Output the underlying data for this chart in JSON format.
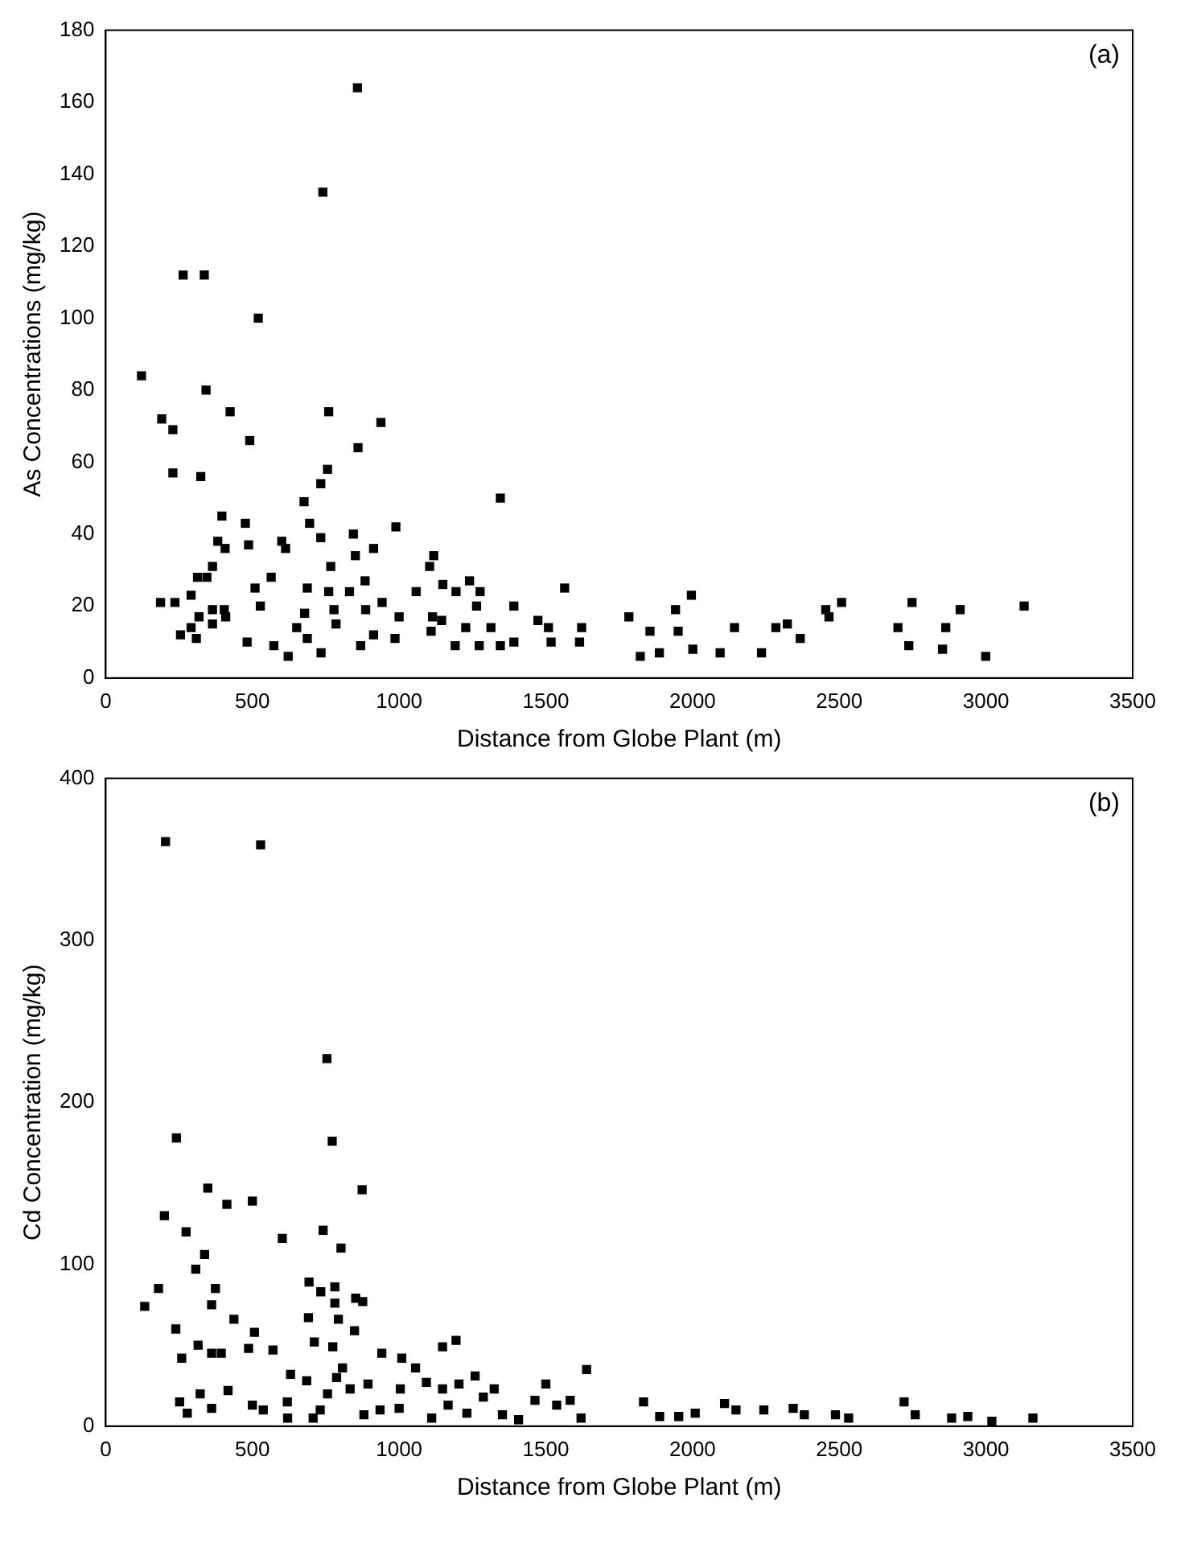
{
  "chart_data": [
    {
      "type": "scatter",
      "xlabel": "Distance from Globe Plant (m)",
      "ylabel": "As Concentrations (mg/kg)",
      "annotations": [
        "(a)"
      ],
      "marker": "square",
      "xlim": [
        0,
        3500
      ],
      "xticks": [
        0,
        500,
        1000,
        1500,
        2000,
        2500,
        3000,
        3500
      ],
      "ylim": [
        0,
        180
      ],
      "yticks": [
        0,
        20,
        40,
        60,
        80,
        100,
        120,
        140,
        160,
        180
      ],
      "series": [
        {
          "color": "#000000",
          "x": [
            858,
            740,
            264,
            336,
            520,
            122,
            342,
            191,
            229,
            424,
            760,
            938,
            491,
            860,
            229,
            324,
            756,
            733,
            676,
            1345,
            396,
            476,
            695,
            382,
            407,
            487,
            600,
            733,
            844,
            913,
            989,
            613,
            767,
            851,
            364,
            1118,
            1104,
            313,
            345,
            564,
            884,
            291,
            187,
            236,
            509,
            687,
            760,
            831,
            404,
            527,
            942,
            1000,
            1058,
            1149,
            1194,
            1240,
            1276,
            1264,
            1391,
            1564,
            364,
            318,
            255,
            291,
            309,
            364,
            409,
            482,
            573,
            622,
            651,
            678,
            687,
            734,
            778,
            785,
            869,
            886,
            913,
            986,
            1109,
            1114,
            1145,
            1191,
            1227,
            1273,
            1313,
            1345,
            1391,
            1473,
            1509,
            1518,
            1615,
            1622,
            1783,
            1855,
            1822,
            1887,
            1942,
            1996,
            1951,
            2001,
            2094,
            2143,
            2235,
            2284,
            2323,
            2367,
            2454,
            2508,
            2465,
            2700,
            2748,
            2737,
            2852,
            2863,
            2912,
            2999,
            3130
          ],
          "values": [
            164,
            135,
            112,
            112,
            100,
            84,
            80,
            72,
            69,
            74,
            74,
            71,
            66,
            64,
            57,
            56,
            58,
            54,
            49,
            50,
            45,
            43,
            43,
            38,
            36,
            37,
            38,
            39,
            40,
            36,
            42,
            36,
            31,
            34,
            31,
            34,
            31,
            28,
            28,
            28,
            27,
            23,
            21,
            21,
            25,
            25,
            24,
            24,
            19,
            20,
            21,
            17,
            24,
            26,
            24,
            27,
            24,
            20,
            20,
            25,
            19,
            17,
            12,
            14,
            11,
            15,
            17,
            10,
            9,
            6,
            14,
            18,
            11,
            7,
            19,
            15,
            9,
            19,
            12,
            11,
            13,
            17,
            16,
            9,
            14,
            9,
            14,
            9,
            10,
            16,
            14,
            10,
            10,
            14,
            17,
            13,
            6,
            7,
            19,
            23,
            13,
            8,
            7,
            14,
            7,
            14,
            15,
            11,
            19,
            21,
            17,
            14,
            21,
            9,
            8,
            14,
            19,
            6,
            20
          ]
        }
      ]
    },
    {
      "type": "scatter",
      "xlabel": "Distance from Globe Plant (m)",
      "ylabel": "Cd Concentration (mg/kg)",
      "annotations": [
        "(b)"
      ],
      "marker": "square",
      "xlim": [
        0,
        3500
      ],
      "xticks": [
        0,
        500,
        1000,
        1500,
        2000,
        2500,
        3000,
        3500
      ],
      "ylim": [
        0,
        400
      ],
      "yticks": [
        0,
        100,
        200,
        300,
        400
      ],
      "series": [
        {
          "color": "#000000",
          "x": [
            204,
            528,
            754,
            772,
            241,
            874,
            348,
            500,
            413,
            200,
            741,
            274,
            602,
            802,
            337,
            307,
            180,
            133,
            374,
            361,
            693,
            733,
            781,
            781,
            852,
            876,
            437,
            507,
            239,
            691,
            793,
            848,
            315,
            361,
            394,
            487,
            570,
            711,
            774,
            941,
            1009,
            1056,
            1148,
            1194,
            259,
            630,
            685,
            787,
            807,
            833,
            894,
            1004,
            1093,
            1148,
            1204,
            1259,
            1324,
            1500,
            1639,
            252,
            322,
            417,
            278,
            361,
            500,
            537,
            619,
            620,
            707,
            756,
            731,
            880,
            935,
            1000,
            1111,
            1167,
            1231,
            1287,
            1352,
            1407,
            1463,
            1537,
            1583,
            1620,
            1833,
            1888,
            1953,
            2009,
            2109,
            2148,
            2243,
            2343,
            2381,
            2487,
            2532,
            2721,
            2759,
            2883,
            2938,
            3020,
            3160
          ],
          "values": [
            361,
            359,
            227,
            176,
            178,
            146,
            147,
            139,
            137,
            130,
            121,
            120,
            116,
            110,
            106,
            97,
            85,
            74,
            85,
            75,
            89,
            83,
            86,
            76,
            79,
            77,
            66,
            58,
            60,
            67,
            66,
            59,
            50,
            45,
            45,
            48,
            47,
            52,
            49,
            45,
            42,
            36,
            49,
            53,
            42,
            32,
            28,
            30,
            36,
            23,
            26,
            23,
            27,
            23,
            26,
            31,
            23,
            26,
            35,
            15,
            20,
            22,
            8,
            11,
            13,
            10,
            15,
            5,
            5,
            20,
            10,
            7,
            10,
            11,
            5,
            13,
            8,
            18,
            7,
            4,
            16,
            13,
            16,
            5,
            15,
            6,
            6,
            8,
            14,
            10,
            10,
            11,
            7,
            7,
            5,
            15,
            7,
            5,
            6,
            3,
            5
          ]
        }
      ]
    }
  ]
}
